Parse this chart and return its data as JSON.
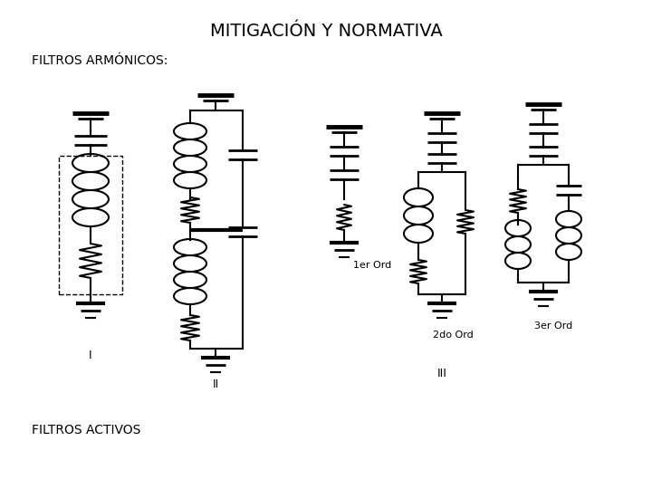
{
  "title": "MITIGACIÓN Y NORMATIVA",
  "subtitle": "FILTROS ARMÓNICOS:",
  "footer": "FILTROS ACTIVOS",
  "bg_color": "#ffffff",
  "line_color": "#000000",
  "title_fontsize": 14,
  "label_fontsize": 8,
  "subtitle_fontsize": 10
}
